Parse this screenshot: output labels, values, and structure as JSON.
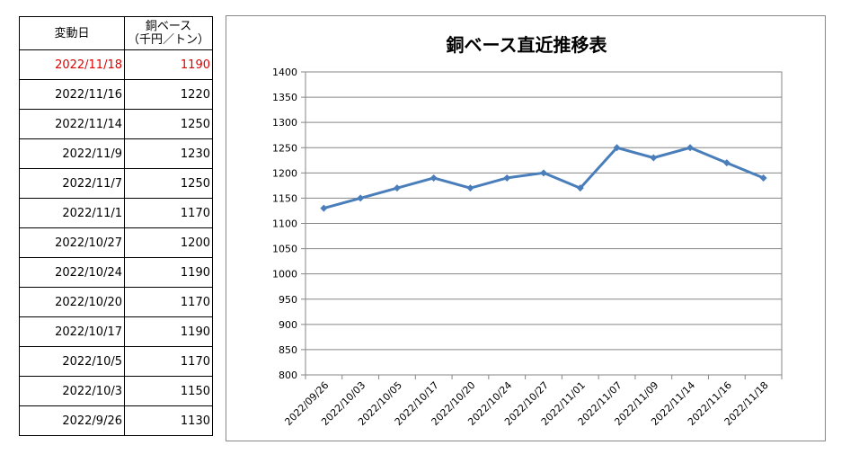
{
  "table": {
    "header_date": "変動日",
    "header_price_line1": "銅ベース",
    "header_price_line2": "（千円／トン）",
    "rows": [
      {
        "date": "2022/11/18",
        "price": "1190"
      },
      {
        "date": "2022/11/16",
        "price": "1220"
      },
      {
        "date": "2022/11/14",
        "price": "1250"
      },
      {
        "date": "2022/11/9",
        "price": "1230"
      },
      {
        "date": "2022/11/7",
        "price": "1250"
      },
      {
        "date": "2022/11/1",
        "price": "1170"
      },
      {
        "date": "2022/10/27",
        "price": "1200"
      },
      {
        "date": "2022/10/24",
        "price": "1190"
      },
      {
        "date": "2022/10/20",
        "price": "1170"
      },
      {
        "date": "2022/10/17",
        "price": "1190"
      },
      {
        "date": "2022/10/5",
        "price": "1170"
      },
      {
        "date": "2022/10/3",
        "price": "1150"
      },
      {
        "date": "2022/9/26",
        "price": "1130"
      }
    ]
  },
  "colors": {
    "latest_row_text": "#e00000",
    "series_line": "#4a7ebb",
    "gridline": "#868686"
  },
  "chart_data": {
    "type": "line",
    "title": "銅ベース直近推移表",
    "xlabel": "",
    "ylabel": "",
    "ylim": [
      800,
      1400
    ],
    "ytick_step": 50,
    "grid": true,
    "legend": "none",
    "categories": [
      "2022/09/26",
      "2022/10/03",
      "2022/10/05",
      "2022/10/17",
      "2022/10/20",
      "2022/10/24",
      "2022/10/27",
      "2022/11/01",
      "2022/11/07",
      "2022/11/09",
      "2022/11/14",
      "2022/11/16",
      "2022/11/18"
    ],
    "series": [
      {
        "values": [
          1130,
          1150,
          1170,
          1190,
          1170,
          1190,
          1200,
          1170,
          1250,
          1230,
          1250,
          1220,
          1190
        ]
      }
    ]
  }
}
